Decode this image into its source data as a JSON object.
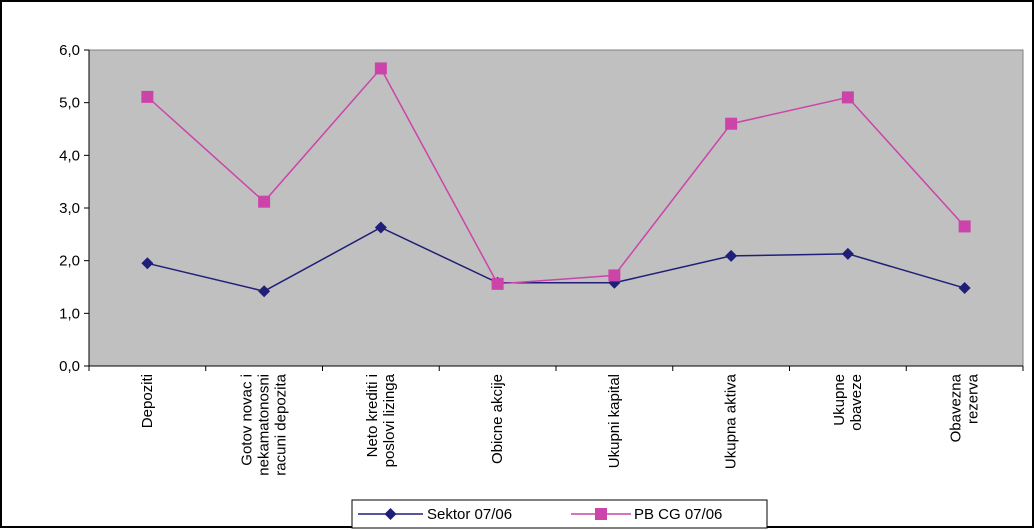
{
  "chart_data": {
    "type": "line",
    "title": "",
    "xlabel": "",
    "ylabel": "",
    "categories": [
      [
        "Depoziti"
      ],
      [
        "Gotov novac i",
        "nekamatonosni",
        "racuni depozita"
      ],
      [
        "Neto krediti i",
        "poslovi lizinga"
      ],
      [
        "Obicne akcije"
      ],
      [
        "Ukupni kapital"
      ],
      [
        "Ukupna aktiva"
      ],
      [
        "Ukupne",
        "obaveze"
      ],
      [
        "Obavezna",
        "rezerva"
      ]
    ],
    "ylim": [
      0,
      6
    ],
    "yticks": [
      "0,0",
      "1,0",
      "2,0",
      "3,0",
      "4,0",
      "5,0",
      "6,0"
    ],
    "grid": false,
    "plot_background": "#C0C0C0",
    "legend_position": "bottom",
    "series": [
      {
        "name": "Sektor  07/06",
        "color": "#1F1F78",
        "marker": "diamond",
        "values": [
          1.95,
          1.42,
          2.63,
          1.58,
          1.58,
          2.09,
          2.13,
          1.48
        ]
      },
      {
        "name": "PB CG 07/06",
        "color": "#CC44AA",
        "marker": "square",
        "values": [
          5.11,
          3.12,
          5.65,
          1.56,
          1.72,
          4.6,
          5.1,
          2.65
        ]
      }
    ]
  }
}
